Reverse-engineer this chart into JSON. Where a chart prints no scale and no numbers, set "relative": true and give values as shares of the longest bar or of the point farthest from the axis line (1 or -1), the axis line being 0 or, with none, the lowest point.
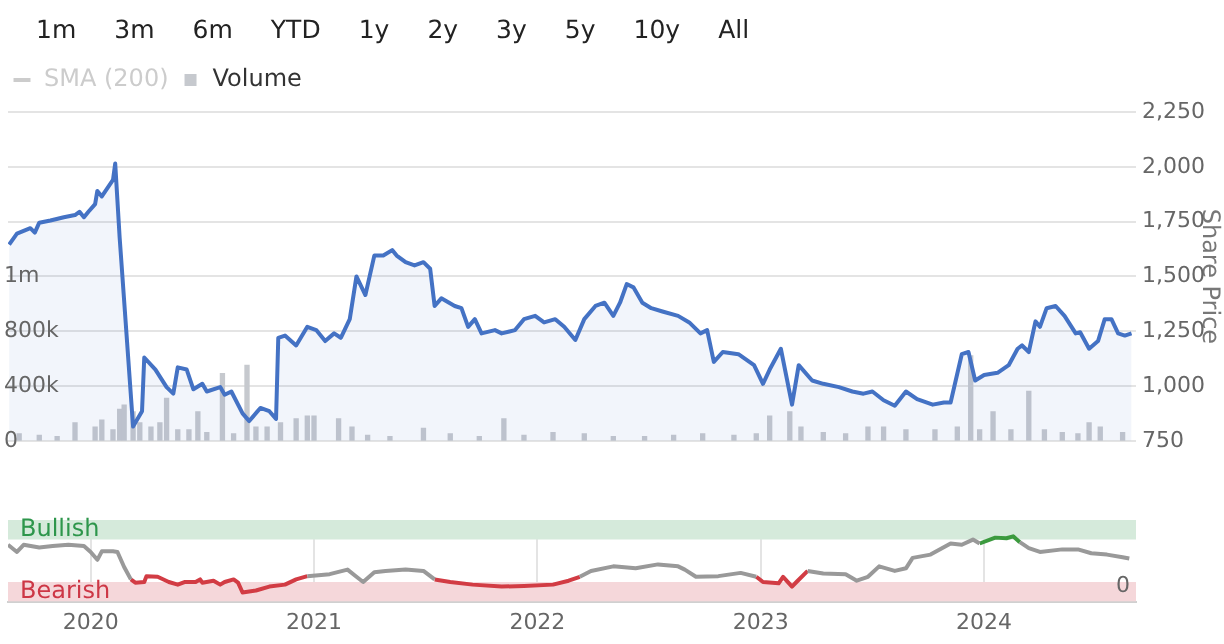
{
  "chart_data": [
    {
      "type": "area",
      "ylabel": "Share Price",
      "annotations": [
        "1m",
        "3m",
        "6m",
        "YTD",
        "1y",
        "2y",
        "3y",
        "5y",
        "10y",
        "All"
      ],
      "xlim": [
        2019.63,
        2024.68
      ],
      "ylim": [
        750,
        2250
      ],
      "yticks": [
        750,
        {
          "value": 1000,
          "label": "1,000"
        },
        {
          "value": 1250,
          "label": "1,250"
        },
        {
          "value": 1500,
          "label": "1,500"
        },
        {
          "value": 1750,
          "label": "1,750"
        },
        {
          "value": 2000,
          "label": "2,000"
        },
        {
          "value": 2250,
          "label": "2,250"
        }
      ],
      "y2lim": [
        0,
        2400000
      ],
      "y2ticks": [
        0,
        {
          "value": 400000,
          "label": "400k"
        },
        {
          "value": 800000,
          "label": "800k"
        },
        {
          "value": 1200000,
          "label": "1m"
        }
      ],
      "grid": "y",
      "legend": "top left",
      "tick_labels": "y",
      "series": [
        {
          "name": "SMA (200)",
          "type": "line",
          "color": "#cccccc"
        },
        {
          "name": "Volume",
          "type": "bar",
          "axis": "y2",
          "color": "#c6c9ce",
          "x": [
            2019.68,
            2019.77,
            2019.85,
            2019.93,
            2020.02,
            2020.05,
            2020.1,
            2020.13,
            2020.15,
            2020.19,
            2020.22,
            2020.27,
            2020.31,
            2020.34,
            2020.39,
            2020.44,
            2020.48,
            2020.52,
            2020.59,
            2020.64,
            2020.7,
            2020.74,
            2020.79,
            2020.85,
            2020.92,
            2020.97,
            2021.0,
            2021.11,
            2021.17,
            2021.24,
            2021.34,
            2021.49,
            2021.61,
            2021.74,
            2021.85,
            2021.94,
            2022.07,
            2022.21,
            2022.34,
            2022.48,
            2022.61,
            2022.74,
            2022.88,
            2022.98,
            2023.04,
            2023.13,
            2023.18,
            2023.28,
            2023.38,
            2023.48,
            2023.55,
            2023.65,
            2023.78,
            2023.88,
            2023.94,
            2023.98,
            2024.04,
            2024.12,
            2024.2,
            2024.27,
            2024.35,
            2024.42,
            2024.47,
            2024.52,
            2024.62
          ],
          "values": [
            50000,
            40000,
            30000,
            130000,
            100000,
            150000,
            80000,
            230000,
            260000,
            210000,
            130000,
            100000,
            130000,
            310000,
            80000,
            80000,
            210000,
            60000,
            490000,
            50000,
            550000,
            100000,
            100000,
            130000,
            160000,
            180000,
            180000,
            160000,
            100000,
            40000,
            30000,
            90000,
            50000,
            30000,
            160000,
            40000,
            60000,
            50000,
            30000,
            30000,
            40000,
            50000,
            40000,
            50000,
            180000,
            210000,
            100000,
            60000,
            50000,
            100000,
            100000,
            80000,
            80000,
            100000,
            620000,
            80000,
            210000,
            80000,
            360000,
            80000,
            60000,
            50000,
            130000,
            100000,
            60000
          ]
        },
        {
          "color": "#4472c4",
          "x": [
            2019.635,
            2019.67,
            2019.73,
            2019.75,
            2019.77,
            2019.82,
            2019.88,
            2019.93,
            2019.95,
            2019.97,
            2019.99,
            2020.02,
            2020.03,
            2020.05,
            2020.1,
            2020.11,
            2020.13,
            2020.19,
            2020.23,
            2020.24,
            2020.29,
            2020.34,
            2020.37,
            2020.39,
            2020.43,
            2020.46,
            2020.5,
            2020.52,
            2020.58,
            2020.6,
            2020.63,
            2020.68,
            2020.71,
            2020.76,
            2020.8,
            2020.83,
            2020.84,
            2020.87,
            2020.92,
            2020.97,
            2021.01,
            2021.05,
            2021.09,
            2021.12,
            2021.16,
            2021.19,
            2021.23,
            2021.27,
            2021.31,
            2021.35,
            2021.37,
            2021.41,
            2021.45,
            2021.49,
            2021.52,
            2021.54,
            2021.57,
            2021.63,
            2021.66,
            2021.69,
            2021.72,
            2021.75,
            2021.81,
            2021.84,
            2021.9,
            2021.94,
            2021.99,
            2022.03,
            2022.08,
            2022.12,
            2022.17,
            2022.21,
            2022.26,
            2022.3,
            2022.34,
            2022.37,
            2022.4,
            2022.43,
            2022.47,
            2022.51,
            2022.56,
            2022.63,
            2022.68,
            2022.73,
            2022.76,
            2022.79,
            2022.83,
            2022.9,
            2022.97,
            2023.01,
            2023.04,
            2023.09,
            2023.14,
            2023.17,
            2023.23,
            2023.28,
            2023.35,
            2023.41,
            2023.46,
            2023.5,
            2023.55,
            2023.6,
            2023.65,
            2023.7,
            2023.77,
            2023.82,
            2023.85,
            2023.9,
            2023.93,
            2023.96,
            2024.0,
            2024.06,
            2024.11,
            2024.15,
            2024.17,
            2024.2,
            2024.23,
            2024.25,
            2024.28,
            2024.32,
            2024.36,
            2024.41,
            2024.43,
            2024.47,
            2024.51,
            2024.54,
            2024.57,
            2024.6,
            2024.63,
            2024.66
          ],
          "values": [
            1645,
            1695,
            1720,
            1700,
            1745,
            1755,
            1770,
            1780,
            1795,
            1770,
            1795,
            1830,
            1890,
            1865,
            1940,
            2015,
            1675,
            815,
            885,
            1130,
            1075,
            995,
            965,
            1085,
            1075,
            985,
            1010,
            975,
            995,
            960,
            975,
            875,
            840,
            900,
            885,
            850,
            1220,
            1230,
            1185,
            1270,
            1255,
            1205,
            1240,
            1220,
            1305,
            1500,
            1415,
            1595,
            1595,
            1620,
            1595,
            1565,
            1550,
            1565,
            1535,
            1365,
            1400,
            1365,
            1355,
            1270,
            1305,
            1240,
            1255,
            1240,
            1255,
            1305,
            1320,
            1290,
            1305,
            1270,
            1210,
            1305,
            1365,
            1380,
            1320,
            1380,
            1465,
            1450,
            1380,
            1355,
            1340,
            1320,
            1290,
            1240,
            1255,
            1110,
            1155,
            1145,
            1095,
            1010,
            1075,
            1170,
            915,
            1095,
            1025,
            1010,
            995,
            975,
            965,
            975,
            935,
            910,
            975,
            940,
            915,
            925,
            925,
            1145,
            1155,
            1025,
            1050,
            1060,
            1095,
            1170,
            1185,
            1155,
            1295,
            1270,
            1355,
            1365,
            1320,
            1240,
            1245,
            1170,
            1205,
            1305,
            1305,
            1240,
            1230,
            1240
          ]
        }
      ]
    },
    {
      "type": "line",
      "relative": true,
      "tick_labels": "x",
      "grid": "x",
      "xlim": [
        2019.63,
        2024.68
      ],
      "xticks": [
        {
          "value": 2020,
          "label": "2020"
        },
        {
          "value": 2021,
          "label": "2021"
        },
        {
          "value": 2022,
          "label": "2022"
        },
        {
          "value": 2023,
          "label": "2023"
        },
        {
          "value": 2024,
          "label": "2024"
        }
      ],
      "annotations": [
        "0"
      ],
      "bands": [
        {
          "axis": "y",
          "from": 0.95,
          "to": 1.25,
          "label": "Bullish",
          "color": "#d5eadb"
        },
        {
          "axis": "y",
          "from": 0,
          "to": 0.3,
          "label": "Bearish",
          "color": "#f5d7da"
        }
      ],
      "x": [
        2019.63,
        2019.67,
        2019.7,
        2019.77,
        2019.83,
        2019.9,
        2019.97,
        2020.0,
        2020.03,
        2020.05,
        2020.1,
        2020.12,
        2020.15,
        2020.18,
        2020.2,
        2020.24,
        2020.25,
        2020.3,
        2020.35,
        2020.39,
        2020.42,
        2020.47,
        2020.49,
        2020.5,
        2020.55,
        2020.58,
        2020.6,
        2020.64,
        2020.66,
        2020.68,
        2020.74,
        2020.8,
        2020.87,
        2020.92,
        2020.97,
        2021.07,
        2021.15,
        2021.19,
        2021.22,
        2021.27,
        2021.32,
        2021.41,
        2021.49,
        2021.54,
        2021.61,
        2021.71,
        2021.84,
        2021.94,
        2022.07,
        2022.14,
        2022.19,
        2022.24,
        2022.34,
        2022.44,
        2022.54,
        2022.63,
        2022.66,
        2022.71,
        2022.81,
        2022.91,
        2022.98,
        2023.01,
        2023.08,
        2023.1,
        2023.14,
        2023.16,
        2023.21,
        2023.28,
        2023.38,
        2023.43,
        2023.48,
        2023.53,
        2023.6,
        2023.65,
        2023.68,
        2023.76,
        2023.85,
        2023.9,
        2023.95,
        2023.98,
        2024.05,
        2024.1,
        2024.13,
        2024.16,
        2024.2,
        2024.25,
        2024.35,
        2024.42,
        2024.48,
        2024.55,
        2024.62,
        2024.65
      ],
      "series": [
        {
          "color": "#999999",
          "values": [
            0.87,
            0.76,
            0.87,
            0.83,
            0.85,
            0.87,
            0.85,
            0.76,
            0.64,
            0.77,
            0.77,
            0.76,
            0.53,
            0.34,
            null,
            null,
            null,
            null,
            null,
            null,
            null,
            null,
            null,
            null,
            null,
            null,
            null,
            null,
            null,
            null,
            null,
            null,
            null,
            null,
            0.39,
            0.42,
            0.49,
            0.38,
            0.3,
            0.45,
            0.47,
            0.49,
            0.47,
            0.34,
            null,
            null,
            null,
            null,
            null,
            null,
            0.38,
            0.47,
            0.54,
            0.51,
            0.57,
            0.54,
            0.49,
            0.38,
            0.39,
            0.44,
            0.38,
            null,
            null,
            null,
            null,
            null,
            0.47,
            0.43,
            0.42,
            0.32,
            0.38,
            0.54,
            0.47,
            0.51,
            0.67,
            0.72,
            0.89,
            0.87,
            0.95,
            0.89,
            null,
            null,
            null,
            0.91,
            0.82,
            0.76,
            0.8,
            0.8,
            0.74,
            0.72,
            0.68,
            0.66
          ]
        },
        {
          "color": "#d23c44",
          "values": [
            null,
            null,
            null,
            null,
            null,
            null,
            null,
            null,
            null,
            null,
            null,
            null,
            null,
            0.34,
            0.29,
            0.3,
            0.39,
            0.38,
            0.3,
            0.26,
            0.3,
            0.3,
            0.34,
            0.29,
            0.32,
            0.26,
            0.3,
            0.34,
            0.29,
            0.14,
            0.17,
            0.23,
            0.26,
            0.34,
            0.39,
            null,
            null,
            null,
            null,
            null,
            null,
            null,
            null,
            0.34,
            0.3,
            0.26,
            0.23,
            0.24,
            0.26,
            0.32,
            0.38,
            null,
            null,
            null,
            null,
            null,
            null,
            null,
            null,
            null,
            0.38,
            0.3,
            0.28,
            0.38,
            0.23,
            0.3,
            0.47,
            null,
            null,
            null,
            null,
            null,
            null,
            null,
            null,
            null,
            null,
            null,
            null,
            null,
            null,
            null,
            null,
            null,
            null,
            null,
            null,
            null,
            null,
            null,
            null,
            null
          ]
        },
        {
          "color": "#3b9a3e",
          "values": [
            null,
            null,
            null,
            null,
            null,
            null,
            null,
            null,
            null,
            null,
            null,
            null,
            null,
            null,
            null,
            null,
            null,
            null,
            null,
            null,
            null,
            null,
            null,
            null,
            null,
            null,
            null,
            null,
            null,
            null,
            null,
            null,
            null,
            null,
            null,
            null,
            null,
            null,
            null,
            null,
            null,
            null,
            null,
            null,
            null,
            null,
            null,
            null,
            null,
            null,
            null,
            null,
            null,
            null,
            null,
            null,
            null,
            null,
            null,
            null,
            null,
            null,
            null,
            null,
            null,
            null,
            null,
            null,
            null,
            null,
            null,
            null,
            null,
            null,
            null,
            null,
            null,
            null,
            null,
            0.89,
            0.98,
            0.97,
            1,
            0.91,
            null,
            null,
            null,
            null,
            null,
            null,
            null,
            null
          ]
        }
      ]
    }
  ]
}
